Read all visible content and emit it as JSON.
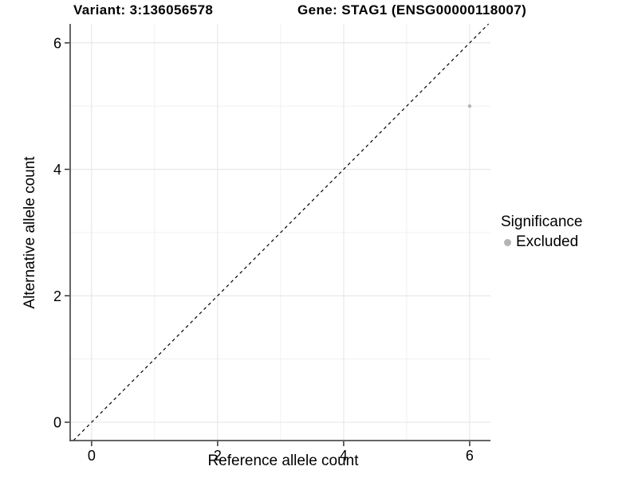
{
  "titles": {
    "left": "Variant: 3:136056578",
    "right": "Gene: STAG1 (ENSG00000118007)"
  },
  "axes": {
    "x_label": "Reference allele count",
    "y_label": "Alternative allele count"
  },
  "legend": {
    "title": "Significance",
    "items": [
      {
        "label": "Excluded",
        "color": "#b4b4b4"
      }
    ]
  },
  "chart_data": {
    "type": "scatter",
    "title": "Variant: 3:136056578  |  Gene: STAG1 (ENSG00000118007)",
    "xlabel": "Reference allele count",
    "ylabel": "Alternative allele count",
    "xlim": [
      -0.34,
      6.33
    ],
    "ylim": [
      -0.29,
      6.3
    ],
    "x_ticks": [
      0,
      2,
      4,
      6
    ],
    "y_ticks": [
      0,
      2,
      4,
      6
    ],
    "x_minor_ticks": [
      1,
      3,
      5
    ],
    "y_minor_ticks": [
      1,
      3,
      5
    ],
    "grid": true,
    "legend_position": "right",
    "series": [
      {
        "name": "Excluded",
        "color": "#b4b4b4",
        "points": [
          {
            "x": 6,
            "y": 5
          }
        ]
      }
    ],
    "reference_line": {
      "type": "identity",
      "style": "dashed",
      "color": "#000000"
    },
    "colors": {
      "grid_major": "#e4e4e4",
      "grid_minor": "#f1f1f1",
      "axis_line": "#333333",
      "tick_mark": "#333333",
      "tick_label": "#000000"
    },
    "point_radius": 2.2,
    "tick_label_font_size": 18
  }
}
